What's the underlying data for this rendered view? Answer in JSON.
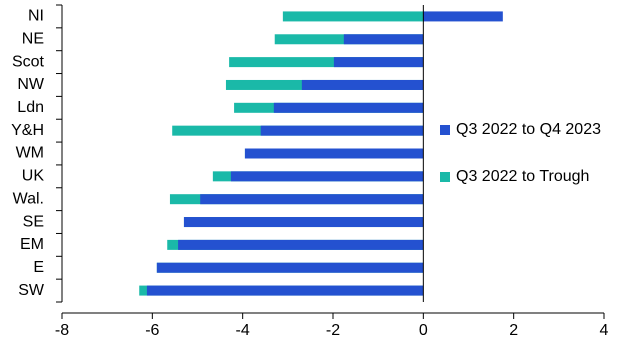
{
  "chart_data": {
    "type": "bar",
    "orientation": "horizontal",
    "overlay": true,
    "categories": [
      "NI",
      "NE",
      "Scot",
      "NW",
      "Ldn",
      "Y&H",
      "WM",
      "UK",
      "Wal.",
      "SE",
      "EM",
      "E",
      "SW"
    ],
    "series": [
      {
        "name": "Q3 2022 to Trough",
        "color": "#1ab9a8",
        "values": [
          -3.11,
          -3.29,
          -4.3,
          -4.37,
          -4.19,
          -5.56,
          -3.95,
          -4.66,
          -5.61,
          -5.3,
          -5.67,
          -5.9,
          -6.29
        ]
      },
      {
        "name": "Q3 2022 to Q4 2023",
        "color": "#2451d0",
        "values": [
          1.76,
          -1.76,
          -1.98,
          -2.69,
          -3.31,
          -3.6,
          -3.95,
          -4.26,
          -4.94,
          -5.3,
          -5.43,
          -5.9,
          -6.12
        ]
      }
    ],
    "legend_order": [
      1,
      0
    ],
    "xlim": [
      -8,
      4
    ],
    "xticks": [
      -8,
      -6,
      -4,
      -2,
      0,
      2,
      4
    ],
    "grid": false
  }
}
